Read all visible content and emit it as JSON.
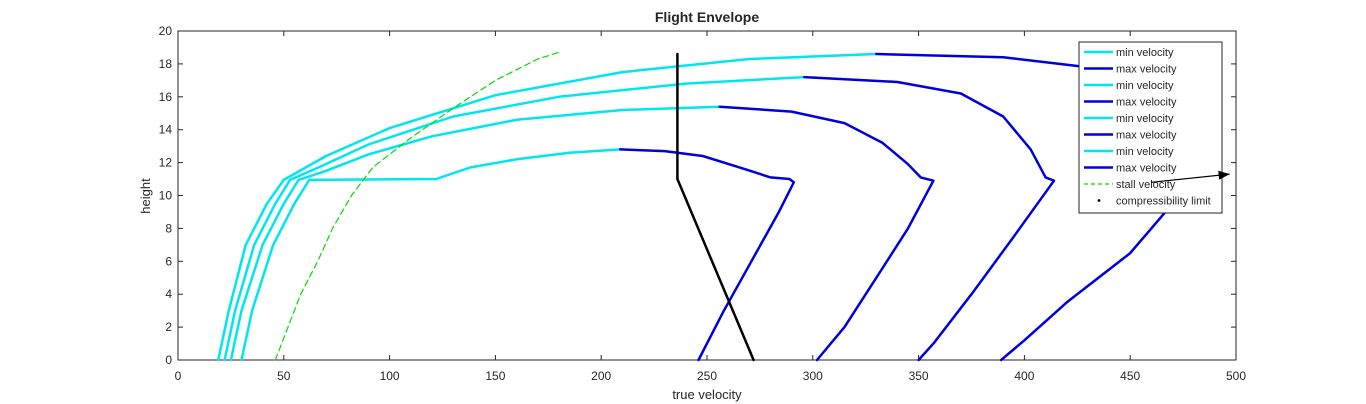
{
  "chart_data": {
    "type": "line",
    "title": "Flight Envelope",
    "xlabel": "true velocity",
    "ylabel": "height",
    "xlim": [
      0,
      500
    ],
    "ylim": [
      0,
      20
    ],
    "xticks": [
      0,
      50,
      100,
      150,
      200,
      250,
      300,
      350,
      400,
      450,
      500
    ],
    "yticks": [
      0,
      2,
      4,
      6,
      8,
      10,
      12,
      14,
      16,
      18,
      20
    ],
    "grid": false,
    "legend_position": "top-right",
    "colors": {
      "min": "#00e6ee",
      "max": "#0000dd",
      "stall": "#00dd00",
      "compress": "#000000",
      "arrow": "#000000"
    },
    "series": [
      {
        "name": "min velocity",
        "kind": "min",
        "points": [
          [
            30,
            0
          ],
          [
            35,
            3
          ],
          [
            45,
            7
          ],
          [
            55,
            9.5
          ],
          [
            62,
            10.95
          ],
          [
            122,
            11
          ],
          [
            138,
            11.7
          ],
          [
            160,
            12.2
          ],
          [
            185,
            12.6
          ],
          [
            209,
            12.8
          ]
        ]
      },
      {
        "name": "max velocity",
        "kind": "max",
        "points": [
          [
            209,
            12.8
          ],
          [
            230,
            12.7
          ],
          [
            248,
            12.4
          ],
          [
            268,
            11.6
          ],
          [
            280,
            11.1
          ],
          [
            289,
            11
          ],
          [
            291,
            10.8
          ],
          [
            284,
            9
          ],
          [
            271,
            6
          ],
          [
            258,
            3
          ],
          [
            246,
            0
          ]
        ]
      },
      {
        "name": "min velocity",
        "kind": "min",
        "points": [
          [
            25,
            0
          ],
          [
            30,
            3
          ],
          [
            40,
            7
          ],
          [
            50,
            9.5
          ],
          [
            57,
            10.95
          ],
          [
            70,
            11.5
          ],
          [
            90,
            12.5
          ],
          [
            120,
            13.6
          ],
          [
            160,
            14.6
          ],
          [
            210,
            15.2
          ],
          [
            256,
            15.4
          ]
        ]
      },
      {
        "name": "max velocity",
        "kind": "max",
        "points": [
          [
            256,
            15.4
          ],
          [
            290,
            15.1
          ],
          [
            315,
            14.4
          ],
          [
            333,
            13.2
          ],
          [
            345,
            11.9
          ],
          [
            351,
            11.1
          ],
          [
            357,
            10.9
          ],
          [
            345,
            8
          ],
          [
            330,
            5
          ],
          [
            315,
            2
          ],
          [
            302,
            0
          ]
        ]
      },
      {
        "name": "min velocity",
        "kind": "min",
        "points": [
          [
            22,
            0
          ],
          [
            27,
            3
          ],
          [
            36,
            7
          ],
          [
            46,
            9.5
          ],
          [
            53,
            10.95
          ],
          [
            68,
            11.8
          ],
          [
            90,
            13.1
          ],
          [
            130,
            14.8
          ],
          [
            180,
            16
          ],
          [
            240,
            16.8
          ],
          [
            296,
            17.2
          ]
        ]
      },
      {
        "name": "max velocity",
        "kind": "max",
        "points": [
          [
            296,
            17.2
          ],
          [
            340,
            16.9
          ],
          [
            370,
            16.2
          ],
          [
            390,
            14.8
          ],
          [
            403,
            12.8
          ],
          [
            410,
            11.1
          ],
          [
            414,
            10.9
          ],
          [
            395,
            7.5
          ],
          [
            375,
            4
          ],
          [
            357,
            1
          ],
          [
            350,
            0
          ]
        ]
      },
      {
        "name": "min velocity",
        "kind": "min",
        "points": [
          [
            19,
            0
          ],
          [
            24,
            3
          ],
          [
            32,
            7
          ],
          [
            42,
            9.5
          ],
          [
            50,
            10.95
          ],
          [
            70,
            12.4
          ],
          [
            100,
            14.1
          ],
          [
            150,
            16.1
          ],
          [
            210,
            17.5
          ],
          [
            270,
            18.3
          ],
          [
            330,
            18.6
          ]
        ]
      },
      {
        "name": "max velocity",
        "kind": "max",
        "points": [
          [
            330,
            18.6
          ],
          [
            390,
            18.4
          ],
          [
            430,
            17.8
          ],
          [
            455,
            16.8
          ],
          [
            470,
            15.5
          ],
          [
            482,
            13.5
          ],
          [
            486,
            12
          ],
          [
            470,
            9.5
          ],
          [
            450,
            6.5
          ],
          [
            420,
            3.5
          ],
          [
            400,
            1.2
          ],
          [
            389,
            0
          ]
        ]
      },
      {
        "name": "stall velocity",
        "kind": "stall",
        "points": [
          [
            46,
            0
          ],
          [
            52,
            2
          ],
          [
            58,
            4
          ],
          [
            66,
            6
          ],
          [
            73,
            8
          ],
          [
            82,
            10
          ],
          [
            92,
            11.7
          ],
          [
            110,
            13.5
          ],
          [
            130,
            15.3
          ],
          [
            150,
            17
          ],
          [
            170,
            18.3
          ],
          [
            180,
            18.7
          ]
        ]
      },
      {
        "name": "compressibility limit",
        "kind": "compress",
        "points": [
          [
            236,
            18.6
          ],
          [
            236,
            11
          ],
          [
            272,
            0
          ]
        ]
      }
    ],
    "annotation_arrow": {
      "from": [
        460,
        10.8
      ],
      "to": [
        497,
        11.3
      ]
    }
  }
}
